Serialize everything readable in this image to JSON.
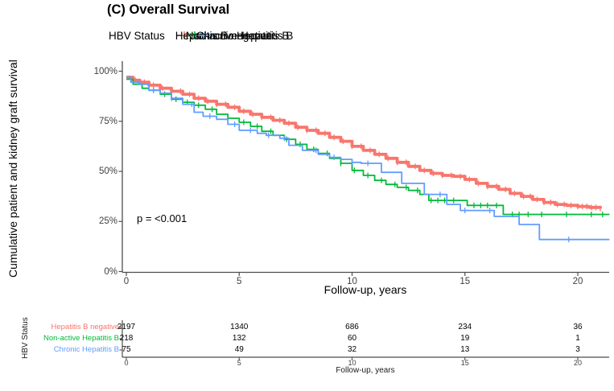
{
  "figure": {
    "title": "(C) Overall Survival",
    "background": "#FFFFFF"
  },
  "legend": {
    "title": "HBV Status",
    "items": [
      {
        "label": "Hepatitis B negative",
        "color": "#F8766D"
      },
      {
        "label": "Non-active Hepatitis B",
        "color": "#00BA38"
      },
      {
        "label": "Chronic Hepatitis B",
        "color": "#619CFF"
      }
    ]
  },
  "chart_data": {
    "type": "line",
    "subtype": "kaplan-meier-step",
    "title": "(C) Overall Survival",
    "xlabel": "Follow-up, years",
    "ylabel": "Cumulative patient and kidney graft survival",
    "xlim": [
      0,
      21.5
    ],
    "ylim": [
      0,
      100
    ],
    "x_ticks": [
      0,
      5,
      10,
      15,
      20
    ],
    "y_ticks": [
      0,
      25,
      50,
      75,
      100
    ],
    "y_tick_labels": [
      "0%",
      "25%",
      "50%",
      "75%",
      "100%"
    ],
    "grid": false,
    "legend_position": "top",
    "annotation": {
      "text": "p = <0.001",
      "x_year": 0.6,
      "y_percent": 26
    },
    "series": [
      {
        "name": "Hepatitis B negative",
        "color": "#F8766D",
        "line_width": 3.8,
        "steps": [
          [
            0,
            97
          ],
          [
            0.3,
            95.5
          ],
          [
            0.6,
            94.5
          ],
          [
            1,
            93
          ],
          [
            1.5,
            91.5
          ],
          [
            2,
            90
          ],
          [
            2.5,
            88.5
          ],
          [
            3,
            86.5
          ],
          [
            3.5,
            85
          ],
          [
            4,
            83.5
          ],
          [
            4.5,
            82
          ],
          [
            5,
            80
          ],
          [
            5.5,
            78.5
          ],
          [
            6,
            77
          ],
          [
            6.5,
            75.5
          ],
          [
            7,
            74
          ],
          [
            7.5,
            72
          ],
          [
            8,
            70.5
          ],
          [
            8.5,
            69
          ],
          [
            9,
            67
          ],
          [
            9.5,
            65
          ],
          [
            10,
            62.5
          ],
          [
            10.5,
            60.5
          ],
          [
            11,
            58.5
          ],
          [
            11.5,
            56.5
          ],
          [
            12,
            54.5
          ],
          [
            12.5,
            52.5
          ],
          [
            13,
            50.5
          ],
          [
            13.5,
            49
          ],
          [
            14,
            48
          ],
          [
            14.5,
            47.5
          ],
          [
            15,
            46
          ],
          [
            15.5,
            44
          ],
          [
            16,
            42.5
          ],
          [
            16.5,
            41
          ],
          [
            17,
            39
          ],
          [
            17.5,
            37.5
          ],
          [
            18,
            36
          ],
          [
            18.5,
            34.5
          ],
          [
            19,
            33.5
          ],
          [
            19.5,
            33
          ],
          [
            20,
            32.5
          ],
          [
            20.5,
            32
          ],
          [
            21,
            31.5
          ]
        ],
        "censor_times": [
          0.4,
          0.8,
          1.2,
          1.6,
          2.0,
          2.4,
          2.8,
          3.2,
          3.6,
          4.0,
          4.4,
          4.8,
          5.2,
          5.6,
          6.0,
          6.4,
          6.8,
          7.2,
          7.6,
          8.0,
          8.4,
          8.8,
          9.2,
          9.6,
          10.0,
          10.4,
          10.8,
          11.2,
          11.6,
          12.0,
          12.4,
          12.8,
          13.2,
          13.6,
          14.0,
          14.4,
          14.8,
          15.2,
          15.6,
          16.0,
          16.4,
          16.8,
          17.2,
          17.6,
          17.9,
          18.2,
          18.5,
          18.8,
          19.1,
          19.4,
          19.7,
          20.0,
          20.2,
          20.4,
          20.6,
          20.8,
          21.0
        ]
      },
      {
        "name": "Non-active Hepatitis B",
        "color": "#00BA38",
        "line_width": 1.8,
        "steps": [
          [
            0,
            96
          ],
          [
            0.3,
            93.5
          ],
          [
            0.7,
            91.5
          ],
          [
            1,
            90.5
          ],
          [
            1.5,
            88.5
          ],
          [
            2,
            86
          ],
          [
            2.5,
            84.5
          ],
          [
            3,
            83
          ],
          [
            3.5,
            81
          ],
          [
            4,
            78.5
          ],
          [
            4.5,
            76.5
          ],
          [
            5,
            74.5
          ],
          [
            5.5,
            72.5
          ],
          [
            6,
            70
          ],
          [
            6.5,
            68
          ],
          [
            7,
            66
          ],
          [
            7.5,
            63.5
          ],
          [
            8,
            61
          ],
          [
            8.5,
            59
          ],
          [
            9,
            56.5
          ],
          [
            9.5,
            54
          ],
          [
            10,
            50.5
          ],
          [
            10.5,
            48
          ],
          [
            11,
            45.5
          ],
          [
            11.5,
            43.5
          ],
          [
            12,
            42
          ],
          [
            12.5,
            40.5
          ],
          [
            13,
            38.5
          ],
          [
            13.4,
            35.5
          ],
          [
            15.1,
            33
          ],
          [
            16.7,
            28.5
          ],
          [
            21.4,
            28.5
          ]
        ],
        "censor_times": [
          1.2,
          1.7,
          2.2,
          2.7,
          3.2,
          3.8,
          4.5,
          5.2,
          5.8,
          6.4,
          7.1,
          7.7,
          8.3,
          8.9,
          9.5,
          10.1,
          10.7,
          11.3,
          11.9,
          12.4,
          12.9,
          13.5,
          13.8,
          14.1,
          14.5,
          15.4,
          15.7,
          16.0,
          16.4,
          17.1,
          17.4,
          17.8,
          18.4,
          19.5,
          20.6,
          21.1
        ]
      },
      {
        "name": "Chronic Hepatitis B",
        "color": "#619CFF",
        "line_width": 1.8,
        "steps": [
          [
            0,
            97
          ],
          [
            0.2,
            94.5
          ],
          [
            0.6,
            93.5
          ],
          [
            1,
            90.5
          ],
          [
            1.5,
            89
          ],
          [
            2,
            86.5
          ],
          [
            2.5,
            83.5
          ],
          [
            3,
            79.5
          ],
          [
            3.4,
            77.5
          ],
          [
            4,
            76
          ],
          [
            4.5,
            73.5
          ],
          [
            5,
            70.5
          ],
          [
            5.8,
            69
          ],
          [
            6.2,
            68
          ],
          [
            6.8,
            66.5
          ],
          [
            7.2,
            63
          ],
          [
            7.8,
            60.5
          ],
          [
            8.5,
            58.5
          ],
          [
            9,
            57
          ],
          [
            9.5,
            56
          ],
          [
            10,
            54.5
          ],
          [
            10.4,
            54
          ],
          [
            11.3,
            49.5
          ],
          [
            12.2,
            44
          ],
          [
            13.2,
            38.5
          ],
          [
            14.2,
            33.5
          ],
          [
            14.8,
            30.5
          ],
          [
            16.3,
            27.5
          ],
          [
            17.4,
            23.5
          ],
          [
            18.3,
            16
          ],
          [
            21.4,
            16
          ]
        ],
        "censor_times": [
          0.5,
          1.2,
          2.0,
          2.9,
          3.7,
          4.8,
          5.5,
          6.3,
          7.0,
          8.4,
          9.2,
          10.0,
          10.7,
          13.9,
          15.0,
          16.1,
          19.6
        ]
      }
    ]
  },
  "risk_table": {
    "axis_label": "HBV Status",
    "xlabel": "Follow-up, years",
    "times": [
      0,
      5,
      10,
      15,
      20
    ],
    "rows": [
      {
        "label": "Hepatitis B negative",
        "color": "#F8766D",
        "counts": [
          "2197",
          "1340",
          "686",
          "234",
          "36"
        ]
      },
      {
        "label": "Non-active Hepatitis B",
        "color": "#00BA38",
        "counts": [
          "218",
          "132",
          "60",
          "19",
          "1"
        ]
      },
      {
        "label": "Chronic Hepatitis B",
        "color": "#619CFF",
        "counts": [
          "75",
          "49",
          "32",
          "13",
          "3"
        ]
      }
    ]
  }
}
